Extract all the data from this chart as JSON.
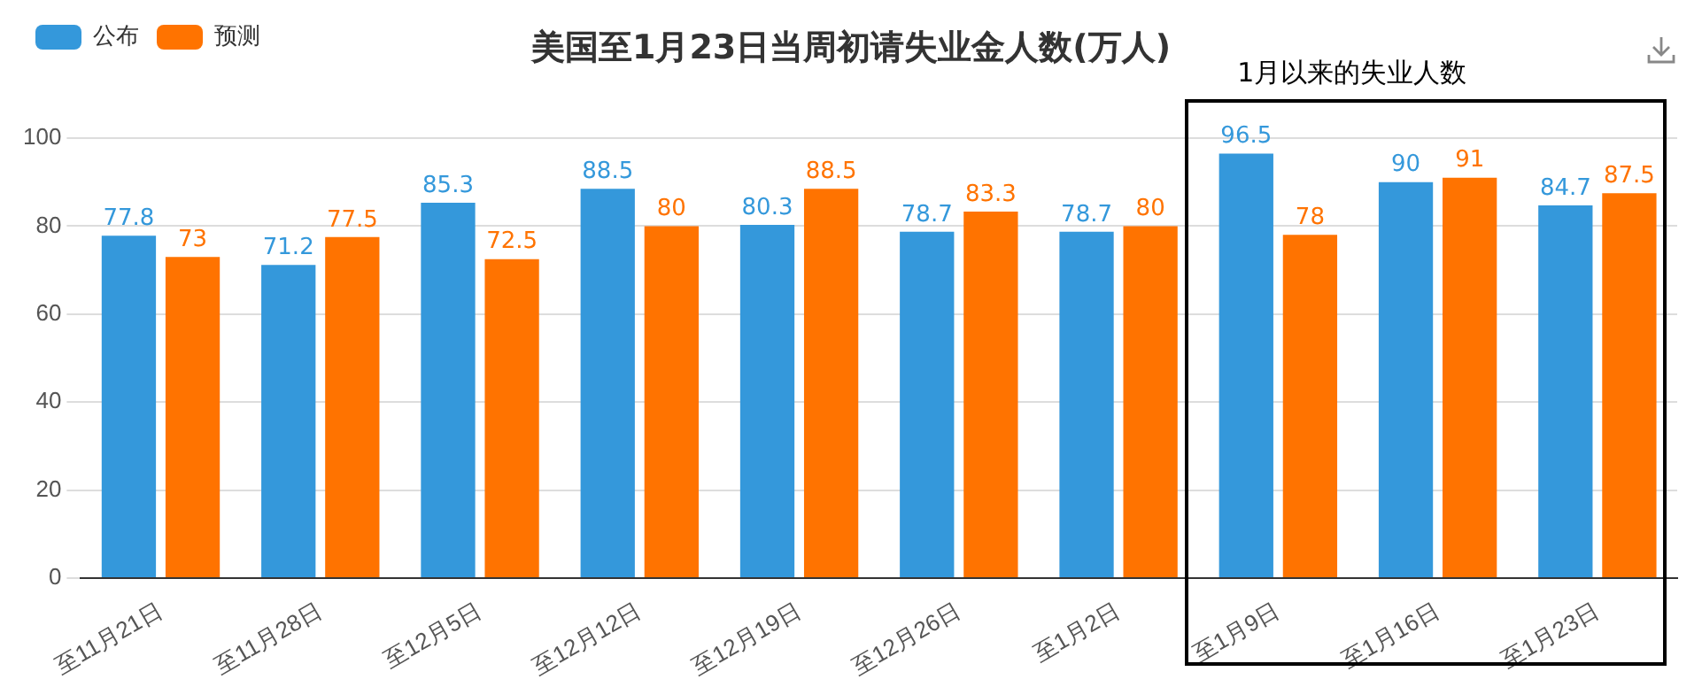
{
  "chart_data": {
    "type": "bar",
    "title": "美国至1月23日当周初请失业金人数(万人)",
    "categories": [
      "至11月21日",
      "至11月28日",
      "至12月5日",
      "至12月12日",
      "至12月19日",
      "至12月26日",
      "至1月2日",
      "至1月9日",
      "至1月16日",
      "至1月23日"
    ],
    "series": [
      {
        "name": "公布",
        "color": "#3498db",
        "values": [
          77.8,
          71.2,
          85.3,
          88.5,
          80.3,
          78.7,
          78.7,
          96.5,
          90,
          84.7
        ]
      },
      {
        "name": "预测",
        "color": "#ff7300",
        "values": [
          73,
          77.5,
          72.5,
          80,
          88.5,
          83.3,
          80,
          78,
          91,
          87.5
        ]
      }
    ],
    "ylim": [
      0,
      100
    ],
    "yticks": [
      0,
      20,
      40,
      60,
      80,
      100
    ],
    "grid": "y",
    "legend": "top left",
    "data_labels": true,
    "annotations": [
      "1月以来的失业人数"
    ]
  }
}
